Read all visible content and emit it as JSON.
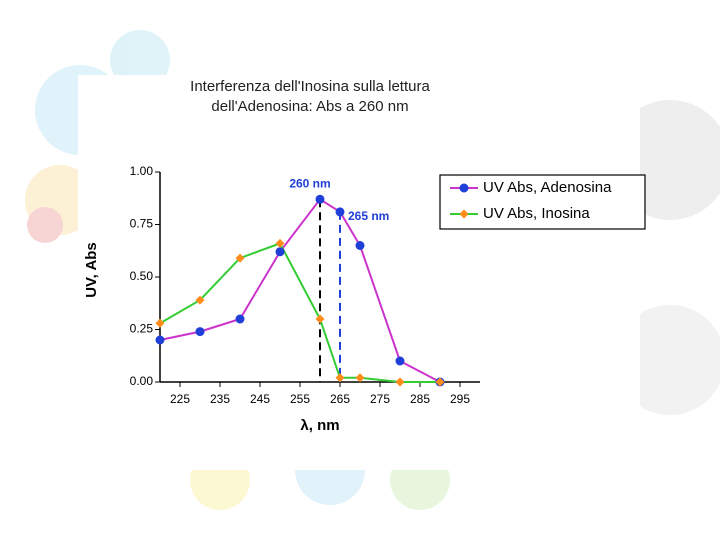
{
  "chart_data": {
    "type": "line",
    "title": [
      "Interferenza dell'Inosina sulla lettura",
      "dell'Adenosina: Abs a 260 nm"
    ],
    "x_label": "λ, nm",
    "y_label": "UV, Abs",
    "x": [
      220,
      230,
      240,
      250,
      260,
      265,
      270,
      280,
      290
    ],
    "series": [
      {
        "name": "UV Abs, Adenosina",
        "color": "#cc33cc",
        "marker_color": "#1f3fd8",
        "marker": "circle",
        "values": [
          0.2,
          0.24,
          0.3,
          0.62,
          0.87,
          0.81,
          0.65,
          0.1,
          0.0
        ]
      },
      {
        "name": "UV Abs, Inosina",
        "color": "#33cc33",
        "marker_color": "#ff8c1a",
        "marker": "diamond",
        "values": [
          0.28,
          0.39,
          0.59,
          0.66,
          0.3,
          0.02,
          0.02,
          0.0,
          0.0
        ]
      }
    ],
    "annotations": [
      {
        "text": "260 nm",
        "x": 260,
        "y": 0.87,
        "color": "#000000"
      },
      {
        "text": "265 nm",
        "x": 265,
        "y": 0.81,
        "color": "#1f3fd8"
      }
    ],
    "xlim": [
      220,
      300
    ],
    "xticks": [
      225,
      235,
      245,
      255,
      265,
      275,
      285,
      295
    ],
    "ylim": [
      0,
      1
    ],
    "yticks": [
      {
        "value": 0,
        "label": "0.00"
      },
      {
        "value": 0.25,
        "label": "0.25"
      },
      {
        "value": 0.5,
        "label": "0.50"
      },
      {
        "value": 0.75,
        "label": "0.75"
      },
      {
        "value": 1,
        "label": "1.00"
      }
    ],
    "legend": "upper right"
  }
}
